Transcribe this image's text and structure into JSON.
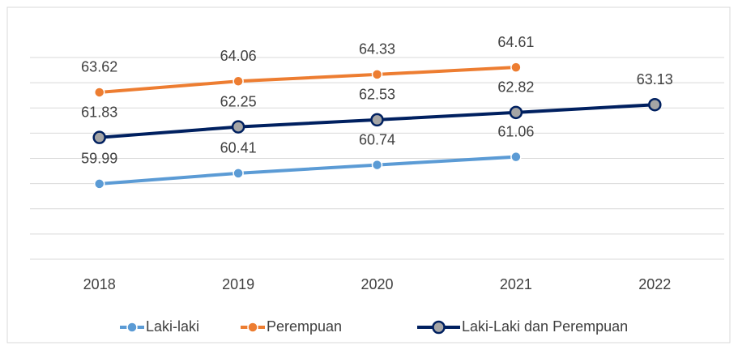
{
  "chart_data": {
    "type": "line",
    "categories": [
      "2018",
      "2019",
      "2020",
      "2021",
      "2022"
    ],
    "series": [
      {
        "name": "Laki-laki",
        "color": "#5b9bd5",
        "values": [
          59.99,
          60.41,
          60.74,
          61.06,
          null
        ]
      },
      {
        "name": "Perempuan",
        "color": "#ed7d31",
        "values": [
          63.62,
          64.06,
          64.33,
          64.61,
          null
        ]
      },
      {
        "name": "Laki-Laki dan Perempuan",
        "color": "#002060",
        "values": [
          61.83,
          62.25,
          62.53,
          62.82,
          63.13
        ]
      }
    ],
    "ylim": [
      57,
      65
    ],
    "yticks": [
      57,
      58,
      59,
      60,
      61,
      62,
      63,
      64,
      65
    ],
    "grid": true,
    "legend": "bottom"
  }
}
